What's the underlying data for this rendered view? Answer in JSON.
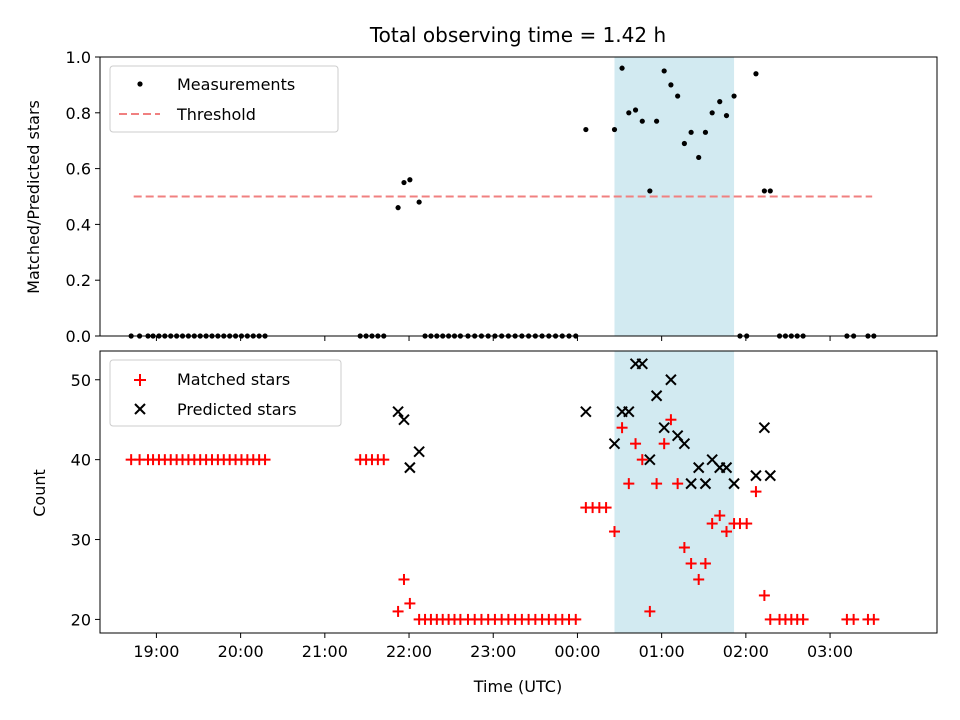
{
  "chart_data": [
    {
      "type": "scatter",
      "title": "Total observing time = 1.42 h",
      "ylabel": "Matched/Predicted stars",
      "xlabel": "",
      "ylim": [
        0,
        1.0
      ],
      "yticks": [
        "0.0",
        "0.2",
        "0.4",
        "0.6",
        "0.8",
        "1.0"
      ],
      "legend_position": "top-left",
      "highlight_span": {
        "start": 24.44,
        "end": 25.86,
        "color": "#add8e6"
      },
      "series": [
        {
          "name": "Measurements",
          "kind": "points",
          "color": "#000000",
          "points": [
            [
              18.7,
              0
            ],
            [
              18.8,
              0
            ],
            [
              18.9,
              0
            ],
            [
              18.96,
              0
            ],
            [
              19.03,
              0
            ],
            [
              19.1,
              0
            ],
            [
              19.17,
              0
            ],
            [
              19.24,
              0
            ],
            [
              19.31,
              0
            ],
            [
              19.38,
              0
            ],
            [
              19.45,
              0
            ],
            [
              19.52,
              0
            ],
            [
              19.59,
              0
            ],
            [
              19.66,
              0
            ],
            [
              19.73,
              0
            ],
            [
              19.8,
              0
            ],
            [
              19.87,
              0
            ],
            [
              19.94,
              0
            ],
            [
              20.01,
              0
            ],
            [
              20.08,
              0
            ],
            [
              20.15,
              0
            ],
            [
              20.22,
              0
            ],
            [
              20.29,
              0
            ],
            [
              21.42,
              0
            ],
            [
              21.49,
              0
            ],
            [
              21.56,
              0
            ],
            [
              21.63,
              0
            ],
            [
              21.7,
              0
            ],
            [
              21.87,
              0.46
            ],
            [
              21.94,
              0.55
            ],
            [
              22.01,
              0.56
            ],
            [
              22.12,
              0.48
            ],
            [
              22.19,
              0
            ],
            [
              22.26,
              0
            ],
            [
              22.33,
              0
            ],
            [
              22.4,
              0
            ],
            [
              22.47,
              0
            ],
            [
              22.54,
              0
            ],
            [
              22.61,
              0
            ],
            [
              22.7,
              0
            ],
            [
              22.78,
              0
            ],
            [
              22.86,
              0
            ],
            [
              22.94,
              0
            ],
            [
              23.02,
              0
            ],
            [
              23.1,
              0
            ],
            [
              23.18,
              0
            ],
            [
              23.26,
              0
            ],
            [
              23.34,
              0
            ],
            [
              23.42,
              0
            ],
            [
              23.5,
              0
            ],
            [
              23.58,
              0
            ],
            [
              23.66,
              0
            ],
            [
              23.74,
              0
            ],
            [
              23.82,
              0
            ],
            [
              23.9,
              0
            ],
            [
              23.98,
              0
            ],
            [
              24.1,
              0.74
            ],
            [
              24.44,
              0.74
            ],
            [
              24.53,
              0.96
            ],
            [
              24.61,
              0.8
            ],
            [
              24.69,
              0.81
            ],
            [
              24.77,
              0.77
            ],
            [
              24.86,
              0.52
            ],
            [
              24.94,
              0.77
            ],
            [
              25.03,
              0.95
            ],
            [
              25.11,
              0.9
            ],
            [
              25.19,
              0.86
            ],
            [
              25.27,
              0.69
            ],
            [
              25.35,
              0.73
            ],
            [
              25.44,
              0.64
            ],
            [
              25.52,
              0.73
            ],
            [
              25.6,
              0.8
            ],
            [
              25.69,
              0.84
            ],
            [
              25.77,
              0.79
            ],
            [
              25.86,
              0.86
            ],
            [
              25.93,
              0
            ],
            [
              26.01,
              0
            ],
            [
              26.12,
              0.94
            ],
            [
              26.22,
              0.52
            ],
            [
              26.29,
              0.52
            ],
            [
              26.4,
              0
            ],
            [
              26.47,
              0
            ],
            [
              26.54,
              0
            ],
            [
              26.61,
              0
            ],
            [
              26.68,
              0
            ],
            [
              27.2,
              0
            ],
            [
              27.28,
              0
            ],
            [
              27.45,
              0
            ],
            [
              27.52,
              0
            ]
          ]
        },
        {
          "name": "Threshold",
          "kind": "dashed-line",
          "color": "#f08080",
          "x": [
            18.73,
            27.5
          ],
          "values": [
            0.5,
            0.5
          ]
        }
      ]
    },
    {
      "type": "scatter",
      "title": "",
      "xlabel": "Time (UTC)",
      "ylabel": "Count",
      "ylim": [
        18.3,
        53.6
      ],
      "yticks": [
        "20",
        "30",
        "40",
        "50"
      ],
      "xticks": [
        "19:00",
        "20:00",
        "21:00",
        "22:00",
        "23:00",
        "00:00",
        "01:00",
        "02:00",
        "03:00"
      ],
      "legend_position": "top-left",
      "highlight_span": {
        "start": 24.44,
        "end": 25.86,
        "color": "#add8e6"
      },
      "series": [
        {
          "name": "Matched stars",
          "kind": "plus",
          "color": "#ff0000",
          "points": [
            [
              18.7,
              40
            ],
            [
              18.8,
              40
            ],
            [
              18.9,
              40
            ],
            [
              18.96,
              40
            ],
            [
              19.03,
              40
            ],
            [
              19.1,
              40
            ],
            [
              19.17,
              40
            ],
            [
              19.24,
              40
            ],
            [
              19.31,
              40
            ],
            [
              19.38,
              40
            ],
            [
              19.45,
              40
            ],
            [
              19.52,
              40
            ],
            [
              19.59,
              40
            ],
            [
              19.66,
              40
            ],
            [
              19.73,
              40
            ],
            [
              19.8,
              40
            ],
            [
              19.87,
              40
            ],
            [
              19.94,
              40
            ],
            [
              20.01,
              40
            ],
            [
              20.08,
              40
            ],
            [
              20.15,
              40
            ],
            [
              20.22,
              40
            ],
            [
              20.29,
              40
            ],
            [
              21.42,
              40
            ],
            [
              21.49,
              40
            ],
            [
              21.56,
              40
            ],
            [
              21.63,
              40
            ],
            [
              21.7,
              40
            ],
            [
              21.87,
              21
            ],
            [
              21.94,
              25
            ],
            [
              22.01,
              22
            ],
            [
              22.12,
              20
            ],
            [
              22.19,
              20
            ],
            [
              22.26,
              20
            ],
            [
              22.33,
              20
            ],
            [
              22.4,
              20
            ],
            [
              22.47,
              20
            ],
            [
              22.54,
              20
            ],
            [
              22.61,
              20
            ],
            [
              22.7,
              20
            ],
            [
              22.78,
              20
            ],
            [
              22.86,
              20
            ],
            [
              22.94,
              20
            ],
            [
              23.02,
              20
            ],
            [
              23.1,
              20
            ],
            [
              23.18,
              20
            ],
            [
              23.26,
              20
            ],
            [
              23.34,
              20
            ],
            [
              23.42,
              20
            ],
            [
              23.5,
              20
            ],
            [
              23.58,
              20
            ],
            [
              23.66,
              20
            ],
            [
              23.74,
              20
            ],
            [
              23.82,
              20
            ],
            [
              23.9,
              20
            ],
            [
              23.98,
              20
            ],
            [
              24.1,
              34
            ],
            [
              24.18,
              34
            ],
            [
              24.26,
              34
            ],
            [
              24.34,
              34
            ],
            [
              24.44,
              31
            ],
            [
              24.53,
              44
            ],
            [
              24.61,
              37
            ],
            [
              24.69,
              42
            ],
            [
              24.77,
              40
            ],
            [
              24.86,
              21
            ],
            [
              24.94,
              37
            ],
            [
              25.03,
              42
            ],
            [
              25.11,
              45
            ],
            [
              25.19,
              37
            ],
            [
              25.27,
              29
            ],
            [
              25.35,
              27
            ],
            [
              25.44,
              25
            ],
            [
              25.52,
              27
            ],
            [
              25.6,
              32
            ],
            [
              25.69,
              33
            ],
            [
              25.77,
              31
            ],
            [
              25.86,
              32
            ],
            [
              25.93,
              32
            ],
            [
              26.01,
              32
            ],
            [
              26.12,
              36
            ],
            [
              26.22,
              23
            ],
            [
              26.29,
              20
            ],
            [
              26.4,
              20
            ],
            [
              26.47,
              20
            ],
            [
              26.54,
              20
            ],
            [
              26.61,
              20
            ],
            [
              26.68,
              20
            ],
            [
              27.2,
              20
            ],
            [
              27.28,
              20
            ],
            [
              27.45,
              20
            ],
            [
              27.52,
              20
            ]
          ]
        },
        {
          "name": "Predicted stars",
          "kind": "cross",
          "color": "#000000",
          "points": [
            [
              21.87,
              46
            ],
            [
              21.94,
              45
            ],
            [
              22.01,
              39
            ],
            [
              22.12,
              41
            ],
            [
              24.1,
              46
            ],
            [
              24.44,
              42
            ],
            [
              24.53,
              46
            ],
            [
              24.61,
              46
            ],
            [
              24.69,
              52
            ],
            [
              24.77,
              52
            ],
            [
              24.86,
              40
            ],
            [
              24.94,
              48
            ],
            [
              25.03,
              44
            ],
            [
              25.11,
              50
            ],
            [
              25.19,
              43
            ],
            [
              25.27,
              42
            ],
            [
              25.35,
              37
            ],
            [
              25.44,
              39
            ],
            [
              25.52,
              37
            ],
            [
              25.6,
              40
            ],
            [
              25.69,
              39
            ],
            [
              25.77,
              39
            ],
            [
              25.86,
              37
            ],
            [
              26.12,
              38
            ],
            [
              26.22,
              44
            ],
            [
              26.29,
              38
            ]
          ]
        }
      ]
    }
  ]
}
